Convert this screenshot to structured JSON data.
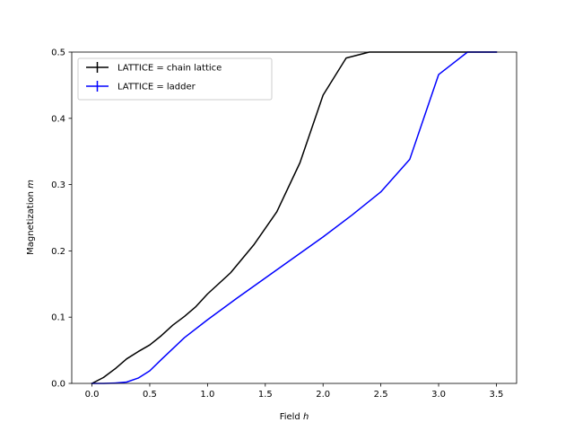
{
  "chart_data": {
    "type": "line",
    "title": "",
    "xlabel": "Field ",
    "xlabel_var": "h",
    "ylabel": "Magnetization ",
    "ylabel_var": "m",
    "xlim": [
      -0.175,
      3.675
    ],
    "ylim": [
      0,
      0.5
    ],
    "x_ticks": [
      0.0,
      0.5,
      1.0,
      1.5,
      2.0,
      2.5,
      3.0,
      3.5
    ],
    "x_tick_labels": [
      "0.0",
      "0.5",
      "1.0",
      "1.5",
      "2.0",
      "2.5",
      "3.0",
      "3.5"
    ],
    "y_ticks": [
      0.0,
      0.1,
      0.2,
      0.3,
      0.4,
      0.5
    ],
    "y_tick_labels": [
      "0.0",
      "0.1",
      "0.2",
      "0.3",
      "0.4",
      "0.5"
    ],
    "grid": false,
    "legend_position": "upper-left",
    "series": [
      {
        "name": "LATTICE = chain lattice",
        "color": "#000000",
        "x": [
          0.0,
          0.1,
          0.2,
          0.3,
          0.4,
          0.5,
          0.6,
          0.7,
          0.8,
          0.9,
          1.0,
          1.2,
          1.4,
          1.6,
          1.8,
          2.0,
          2.2,
          2.4,
          2.6,
          2.8,
          3.0,
          3.2,
          3.4,
          3.5
        ],
        "y": [
          0.0,
          0.009,
          0.022,
          0.037,
          0.048,
          0.058,
          0.072,
          0.088,
          0.101,
          0.116,
          0.135,
          0.167,
          0.209,
          0.259,
          0.333,
          0.435,
          0.491,
          0.5,
          0.5,
          0.5,
          0.5,
          0.5,
          0.5,
          0.5
        ]
      },
      {
        "name": "LATTICE = ladder",
        "color": "#0000ff",
        "x": [
          0.0,
          0.1,
          0.2,
          0.3,
          0.4,
          0.5,
          0.6,
          0.8,
          1.0,
          1.25,
          1.5,
          1.75,
          2.0,
          2.25,
          2.5,
          2.75,
          3.0,
          3.25,
          3.5
        ],
        "y": [
          0.0,
          0.0,
          0.0005,
          0.002,
          0.008,
          0.019,
          0.036,
          0.069,
          0.096,
          0.128,
          0.159,
          0.19,
          0.221,
          0.254,
          0.289,
          0.338,
          0.466,
          0.5,
          0.5
        ]
      }
    ]
  }
}
